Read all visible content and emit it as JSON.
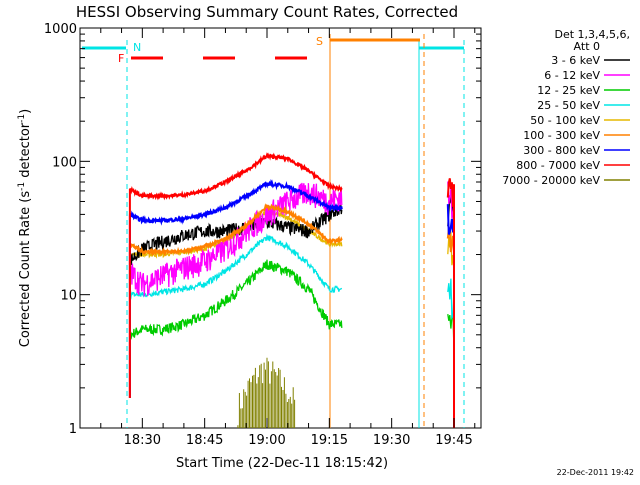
{
  "chart_data": {
    "type": "line",
    "title": "HESSI Observing Summary Count Rates, Corrected",
    "xlabel": "Start Time (22-Dec-11 18:15:42)",
    "ylabel_main": "Corrected Count Rate (s",
    "ylabel_sup1": "-1",
    "ylabel_mid": " detector",
    "ylabel_sup2": "-1",
    "ylabel_end": ")",
    "y_scale": "log",
    "ylim": [
      1,
      1000
    ],
    "xlim_minutes_after_1815": [
      0,
      38.5
    ],
    "x_ticks": [
      {
        "label": "18:30",
        "min": 15
      },
      {
        "label": "18:45",
        "min": 30
      },
      {
        "label": "19:00",
        "min": 45
      },
      {
        "label": "19:15",
        "min": 60
      },
      {
        "label": "19:30",
        "min": 75
      },
      {
        "label": "19:45",
        "min": 90
      }
    ],
    "y_ticks": [
      {
        "label": "1",
        "value": 1
      },
      {
        "label": "10",
        "value": 10
      },
      {
        "label": "100",
        "value": 100
      },
      {
        "label": "1000",
        "value": 1000
      }
    ],
    "legend": {
      "placement": "right",
      "header1": "Det 1,3,4,5,6,",
      "header2": "Att 0",
      "entries": [
        {
          "label": "3 - 6 keV",
          "color": "#000000"
        },
        {
          "label": "6 - 12 keV",
          "color": "#ff00ff"
        },
        {
          "label": "12 - 25 keV",
          "color": "#00cc00"
        },
        {
          "label": "25 - 50 keV",
          "color": "#00e5e5"
        },
        {
          "label": "50 - 100 keV",
          "color": "#e6b800"
        },
        {
          "label": "100 - 300 keV",
          "color": "#ff8000"
        },
        {
          "label": "300 - 800 keV",
          "color": "#0000ff"
        },
        {
          "label": "800 - 7000 keV",
          "color": "#ff0000"
        },
        {
          "label": "7000 - 20000 keV",
          "color": "#808000"
        }
      ]
    },
    "flags": [
      {
        "label": "N",
        "color": "#00e5e5"
      },
      {
        "label": "F",
        "color": "#ff0000"
      },
      {
        "label": "S",
        "color": "#ff8000"
      }
    ],
    "series": [
      {
        "name": "3 - 6 keV",
        "color": "#000000",
        "x": [
          12,
          15,
          20,
          25,
          30,
          35,
          40,
          45,
          50,
          55,
          60,
          63
        ],
        "y": [
          18,
          22,
          25,
          28,
          30,
          30,
          32,
          35,
          32,
          30,
          40,
          45
        ]
      },
      {
        "name": "6 - 12 keV",
        "color": "#ff00ff",
        "x": [
          12,
          15,
          20,
          25,
          30,
          35,
          40,
          45,
          50,
          55,
          60,
          63
        ],
        "y": [
          15,
          12,
          14,
          16,
          18,
          22,
          30,
          40,
          50,
          60,
          50,
          55
        ]
      },
      {
        "name": "12 - 25 keV",
        "color": "#00cc00",
        "x": [
          12,
          15,
          20,
          25,
          30,
          35,
          40,
          45,
          50,
          55,
          60,
          63
        ],
        "y": [
          5,
          5.5,
          5.5,
          6,
          7,
          9,
          12,
          17,
          15,
          11,
          6,
          6
        ]
      },
      {
        "name": "25 - 50 keV",
        "color": "#00e5e5",
        "x": [
          12,
          15,
          20,
          25,
          30,
          35,
          40,
          45,
          50,
          55,
          60,
          63
        ],
        "y": [
          10,
          10,
          10.5,
          11,
          12,
          15,
          20,
          27,
          23,
          17,
          11,
          11
        ]
      },
      {
        "name": "50 - 100 keV",
        "color": "#e6b800",
        "x": [
          12,
          15,
          20,
          25,
          30,
          35,
          40,
          45,
          50,
          55,
          60,
          63
        ],
        "y": [
          20,
          20,
          20,
          21,
          22,
          25,
          32,
          42,
          38,
          30,
          24,
          24
        ]
      },
      {
        "name": "100 - 300 keV",
        "color": "#ff8000",
        "x": [
          12,
          15,
          20,
          25,
          30,
          35,
          40,
          45,
          50,
          55,
          60,
          63
        ],
        "y": [
          24,
          21,
          21,
          21,
          23,
          26,
          33,
          46,
          42,
          34,
          25,
          26
        ]
      },
      {
        "name": "300 - 800 keV",
        "color": "#0000ff",
        "x": [
          12,
          15,
          20,
          25,
          30,
          35,
          40,
          45,
          50,
          55,
          60,
          63
        ],
        "y": [
          40,
          36,
          36,
          37,
          40,
          45,
          55,
          68,
          65,
          55,
          45,
          45
        ]
      },
      {
        "name": "800 - 7000 keV",
        "color": "#ff0000",
        "x": [
          12,
          15,
          20,
          25,
          30,
          35,
          40,
          45,
          50,
          55,
          60,
          63
        ],
        "y": [
          62,
          55,
          55,
          56,
          60,
          70,
          85,
          110,
          105,
          85,
          65,
          62
        ]
      },
      {
        "name": "7000 - 20000 keV",
        "color": "#808000",
        "x": [
          38,
          40,
          42,
          44,
          46,
          48,
          50,
          52
        ],
        "y": [
          1.5,
          2,
          2.5,
          3,
          2.8,
          2.4,
          2,
          1.6
        ]
      }
    ]
  },
  "footer_timestamp": "22-Dec-2011 19:42"
}
